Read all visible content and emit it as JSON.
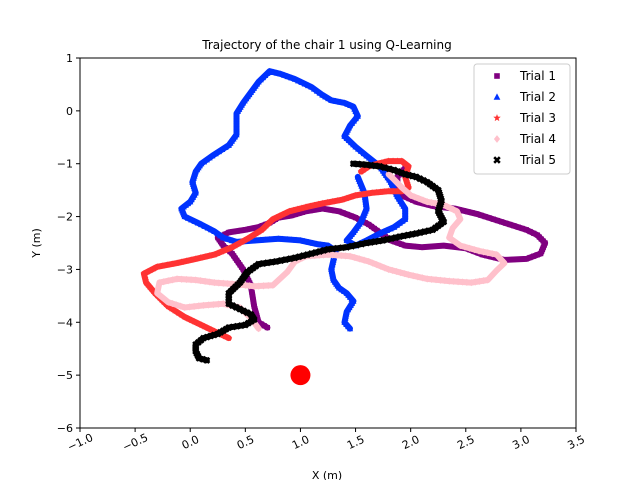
{
  "chart_data": {
    "type": "scatter",
    "title": "Trajectory of the chair 1 using Q-Learning",
    "xlabel": "X (m)",
    "ylabel": "Y (m)",
    "xlim": [
      -1.0,
      3.5
    ],
    "ylim": [
      -6,
      1
    ],
    "xticks": [
      "−1.0",
      "−0.5",
      "0.0",
      "0.5",
      "1.0",
      "1.5",
      "2.0",
      "2.5",
      "3.0",
      "3.5"
    ],
    "xtick_values": [
      -1.0,
      -0.5,
      0.0,
      0.5,
      1.0,
      1.5,
      2.0,
      2.5,
      3.0,
      3.5
    ],
    "yticks": [
      "−6",
      "−5",
      "−4",
      "−3",
      "−2",
      "−1",
      "0",
      "1"
    ],
    "ytick_values": [
      -6,
      -5,
      -4,
      -3,
      -2,
      -1,
      0,
      1
    ],
    "grid": false,
    "legend_position": "top-right",
    "series": [
      {
        "name": "Trial 1",
        "color": "#800080",
        "marker": "square",
        "points": [
          [
            0.7,
            -4.1
          ],
          [
            0.62,
            -4.0
          ],
          [
            0.58,
            -3.7
          ],
          [
            0.55,
            -3.3
          ],
          [
            0.48,
            -3.0
          ],
          [
            0.38,
            -2.7
          ],
          [
            0.3,
            -2.55
          ],
          [
            0.25,
            -2.4
          ],
          [
            0.35,
            -2.3
          ],
          [
            0.5,
            -2.25
          ],
          [
            0.62,
            -2.2
          ],
          [
            0.72,
            -2.12
          ],
          [
            0.8,
            -2.02
          ],
          [
            0.92,
            -1.98
          ],
          [
            1.05,
            -1.9
          ],
          [
            1.2,
            -1.85
          ],
          [
            1.35,
            -1.9
          ],
          [
            1.5,
            -2.02
          ],
          [
            1.62,
            -2.15
          ],
          [
            1.72,
            -2.3
          ],
          [
            1.82,
            -2.45
          ],
          [
            1.95,
            -2.55
          ],
          [
            2.1,
            -2.58
          ],
          [
            2.3,
            -2.55
          ],
          [
            2.5,
            -2.6
          ],
          [
            2.65,
            -2.72
          ],
          [
            2.85,
            -2.82
          ],
          [
            3.05,
            -2.8
          ],
          [
            3.18,
            -2.7
          ],
          [
            3.22,
            -2.5
          ],
          [
            3.15,
            -2.35
          ],
          [
            3.05,
            -2.25
          ],
          [
            2.9,
            -2.15
          ],
          [
            2.75,
            -2.05
          ],
          [
            2.6,
            -1.95
          ],
          [
            2.4,
            -1.85
          ],
          [
            2.2,
            -1.8
          ],
          [
            2.05,
            -1.72
          ],
          [
            1.92,
            -1.6
          ],
          [
            1.88,
            -1.4
          ],
          [
            1.88,
            -1.25
          ],
          [
            1.95,
            -1.08
          ]
        ]
      },
      {
        "name": "Trial 2",
        "color": "#0033ff",
        "marker": "triangle",
        "points": [
          [
            1.45,
            -4.12
          ],
          [
            1.4,
            -4.0
          ],
          [
            1.42,
            -3.8
          ],
          [
            1.48,
            -3.6
          ],
          [
            1.42,
            -3.45
          ],
          [
            1.35,
            -3.35
          ],
          [
            1.3,
            -3.2
          ],
          [
            1.28,
            -3.0
          ],
          [
            1.3,
            -2.82
          ],
          [
            1.32,
            -2.65
          ],
          [
            1.25,
            -2.55
          ],
          [
            1.15,
            -2.52
          ],
          [
            1.0,
            -2.45
          ],
          [
            0.8,
            -2.42
          ],
          [
            0.6,
            -2.45
          ],
          [
            0.42,
            -2.48
          ],
          [
            0.3,
            -2.4
          ],
          [
            0.22,
            -2.28
          ],
          [
            0.1,
            -2.15
          ],
          [
            -0.05,
            -2.0
          ],
          [
            -0.08,
            -1.85
          ],
          [
            0.0,
            -1.72
          ],
          [
            0.05,
            -1.55
          ],
          [
            0.02,
            -1.35
          ],
          [
            0.05,
            -1.15
          ],
          [
            0.1,
            -1.0
          ],
          [
            0.2,
            -0.85
          ],
          [
            0.35,
            -0.65
          ],
          [
            0.42,
            -0.45
          ],
          [
            0.42,
            -0.25
          ],
          [
            0.42,
            -0.05
          ],
          [
            0.48,
            0.15
          ],
          [
            0.55,
            0.35
          ],
          [
            0.62,
            0.55
          ],
          [
            0.72,
            0.75
          ],
          [
            0.82,
            0.7
          ],
          [
            0.95,
            0.6
          ],
          [
            1.1,
            0.45
          ],
          [
            1.2,
            0.3
          ],
          [
            1.28,
            0.2
          ],
          [
            1.4,
            0.15
          ],
          [
            1.48,
            0.08
          ],
          [
            1.52,
            -0.1
          ],
          [
            1.45,
            -0.28
          ],
          [
            1.4,
            -0.48
          ],
          [
            1.5,
            -0.68
          ],
          [
            1.6,
            -0.85
          ],
          [
            1.72,
            -1.05
          ],
          [
            1.82,
            -1.35
          ],
          [
            1.88,
            -1.62
          ],
          [
            1.95,
            -1.85
          ],
          [
            1.95,
            -2.05
          ],
          [
            1.85,
            -2.2
          ],
          [
            1.72,
            -2.32
          ],
          [
            1.6,
            -2.45
          ],
          [
            1.5,
            -2.55
          ],
          [
            1.42,
            -2.45
          ],
          [
            1.48,
            -2.3
          ],
          [
            1.55,
            -2.1
          ],
          [
            1.6,
            -1.85
          ],
          [
            1.58,
            -1.55
          ],
          [
            1.52,
            -1.25
          ]
        ]
      },
      {
        "name": "Trial 3",
        "color": "#ff3333",
        "marker": "star",
        "points": [
          [
            0.35,
            -4.3
          ],
          [
            0.25,
            -4.2
          ],
          [
            0.1,
            -4.05
          ],
          [
            -0.05,
            -3.9
          ],
          [
            -0.2,
            -3.7
          ],
          [
            -0.32,
            -3.45
          ],
          [
            -0.4,
            -3.25
          ],
          [
            -0.42,
            -3.08
          ],
          [
            -0.3,
            -2.95
          ],
          [
            -0.12,
            -2.88
          ],
          [
            0.05,
            -2.8
          ],
          [
            0.22,
            -2.72
          ],
          [
            0.38,
            -2.58
          ],
          [
            0.52,
            -2.42
          ],
          [
            0.65,
            -2.25
          ],
          [
            0.75,
            -2.05
          ],
          [
            0.9,
            -1.9
          ],
          [
            1.05,
            -1.82
          ],
          [
            1.2,
            -1.75
          ],
          [
            1.38,
            -1.68
          ],
          [
            1.5,
            -1.6
          ],
          [
            1.65,
            -1.55
          ],
          [
            1.8,
            -1.52
          ],
          [
            1.92,
            -1.52
          ],
          [
            1.98,
            -1.45
          ],
          [
            1.95,
            -1.25
          ],
          [
            1.98,
            -1.05
          ],
          [
            1.92,
            -0.95
          ],
          [
            1.8,
            -0.95
          ],
          [
            1.7,
            -1.0
          ],
          [
            1.62,
            -1.05
          ],
          [
            1.55,
            -1.15
          ]
        ]
      },
      {
        "name": "Trial 4",
        "color": "#ffc0cb",
        "marker": "diamond",
        "points": [
          [
            0.62,
            -4.12
          ],
          [
            0.55,
            -3.92
          ],
          [
            0.45,
            -3.72
          ],
          [
            0.3,
            -3.65
          ],
          [
            0.12,
            -3.68
          ],
          [
            -0.05,
            -3.72
          ],
          [
            -0.2,
            -3.62
          ],
          [
            -0.3,
            -3.45
          ],
          [
            -0.28,
            -3.25
          ],
          [
            -0.12,
            -3.18
          ],
          [
            0.05,
            -3.2
          ],
          [
            0.22,
            -3.25
          ],
          [
            0.42,
            -3.28
          ],
          [
            0.58,
            -3.32
          ],
          [
            0.75,
            -3.3
          ],
          [
            0.88,
            -3.05
          ],
          [
            0.95,
            -2.85
          ],
          [
            1.05,
            -2.75
          ],
          [
            1.25,
            -2.72
          ],
          [
            1.45,
            -2.75
          ],
          [
            1.62,
            -2.85
          ],
          [
            1.8,
            -3.0
          ],
          [
            1.98,
            -3.1
          ],
          [
            2.15,
            -3.18
          ],
          [
            2.35,
            -3.22
          ],
          [
            2.55,
            -3.25
          ],
          [
            2.7,
            -3.2
          ],
          [
            2.78,
            -3.02
          ],
          [
            2.85,
            -2.88
          ],
          [
            2.78,
            -2.72
          ],
          [
            2.62,
            -2.65
          ],
          [
            2.45,
            -2.55
          ],
          [
            2.35,
            -2.4
          ],
          [
            2.38,
            -2.22
          ],
          [
            2.45,
            -2.05
          ],
          [
            2.42,
            -1.9
          ],
          [
            2.3,
            -1.78
          ],
          [
            2.15,
            -1.72
          ],
          [
            2.0,
            -1.6
          ],
          [
            1.92,
            -1.45
          ],
          [
            1.85,
            -1.3
          ],
          [
            1.8,
            -1.2
          ]
        ]
      },
      {
        "name": "Trial 5",
        "color": "#000000",
        "marker": "x",
        "points": [
          [
            0.15,
            -4.72
          ],
          [
            0.08,
            -4.68
          ],
          [
            0.05,
            -4.55
          ],
          [
            0.05,
            -4.42
          ],
          [
            0.12,
            -4.3
          ],
          [
            0.25,
            -4.22
          ],
          [
            0.35,
            -4.1
          ],
          [
            0.5,
            -4.05
          ],
          [
            0.58,
            -3.95
          ],
          [
            0.55,
            -3.85
          ],
          [
            0.45,
            -3.75
          ],
          [
            0.35,
            -3.65
          ],
          [
            0.35,
            -3.45
          ],
          [
            0.45,
            -3.25
          ],
          [
            0.52,
            -3.05
          ],
          [
            0.62,
            -2.9
          ],
          [
            0.78,
            -2.85
          ],
          [
            0.95,
            -2.78
          ],
          [
            1.1,
            -2.7
          ],
          [
            1.25,
            -2.62
          ],
          [
            1.42,
            -2.58
          ],
          [
            1.6,
            -2.5
          ],
          [
            1.75,
            -2.45
          ],
          [
            1.9,
            -2.38
          ],
          [
            2.05,
            -2.32
          ],
          [
            2.2,
            -2.25
          ],
          [
            2.3,
            -2.1
          ],
          [
            2.25,
            -1.9
          ],
          [
            2.28,
            -1.7
          ],
          [
            2.25,
            -1.5
          ],
          [
            2.15,
            -1.35
          ],
          [
            2.05,
            -1.25
          ],
          [
            1.95,
            -1.2
          ],
          [
            1.85,
            -1.12
          ],
          [
            1.72,
            -1.05
          ],
          [
            1.6,
            -1.02
          ],
          [
            1.48,
            -1.0
          ]
        ]
      },
      {
        "name": "",
        "color": "#ff0000",
        "marker": "circle-large",
        "points": [
          [
            1.0,
            -5.0
          ]
        ]
      }
    ]
  }
}
